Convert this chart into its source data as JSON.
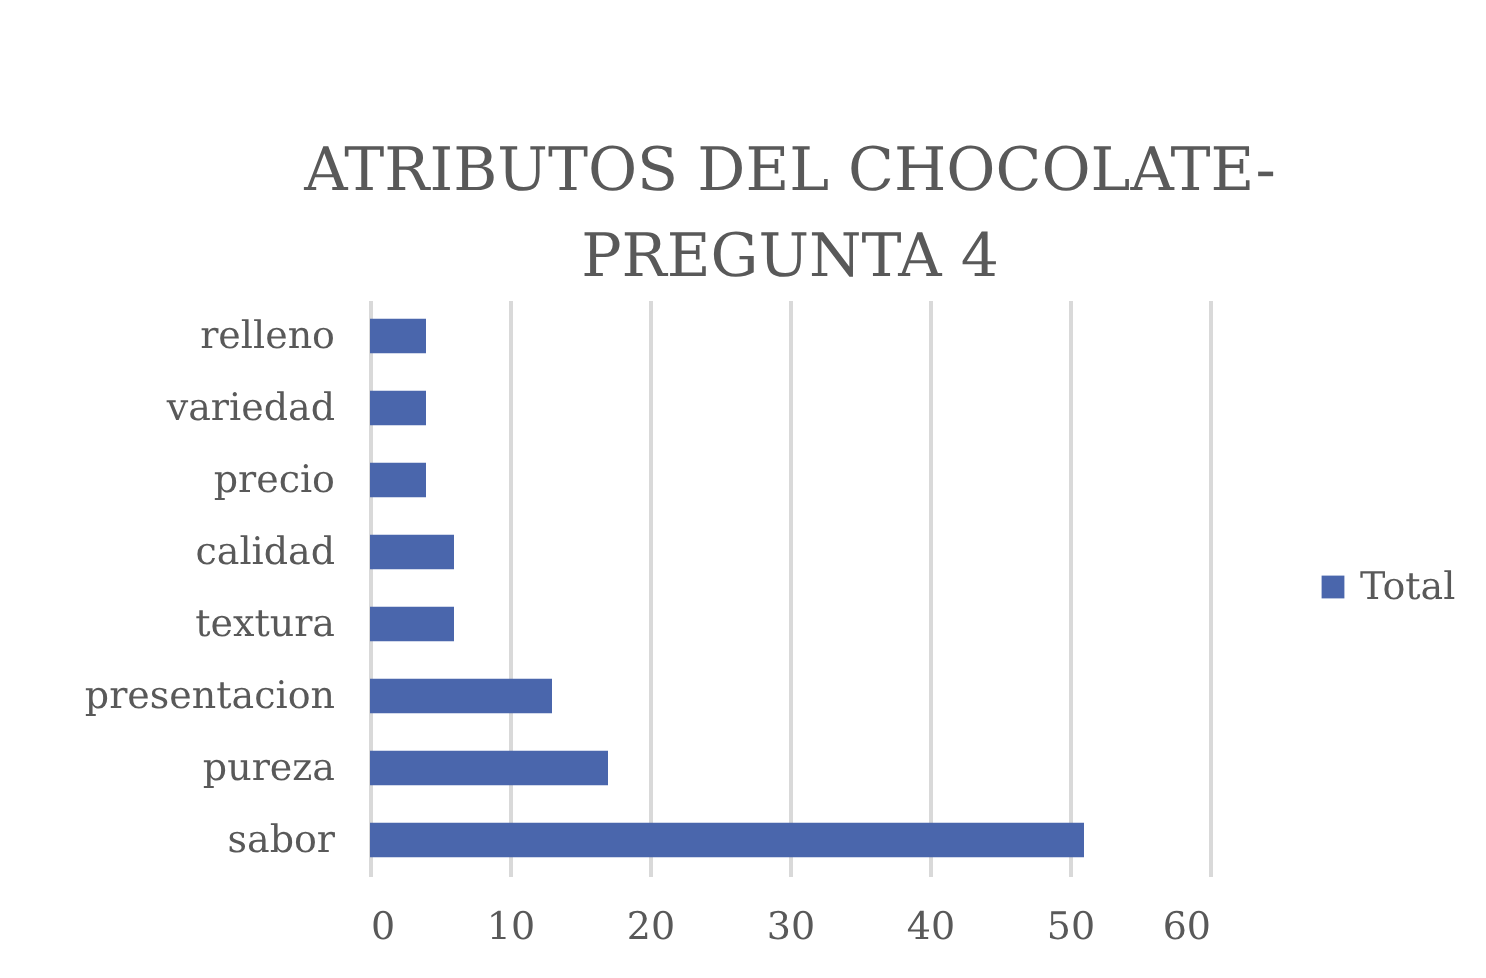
{
  "chart_data": {
    "type": "bar",
    "title": "ATRIBUTOS DEL CHOCOLATE-PREGUNTA 4",
    "orientation": "horizontal",
    "categories": [
      "relleno",
      "variedad",
      "precio",
      "calidad",
      "textura",
      "presentacion",
      "pureza",
      "sabor"
    ],
    "series": [
      {
        "name": "Total",
        "color": "#4a66ac",
        "values": [
          4,
          4,
          4,
          6,
          6,
          13,
          17,
          51
        ]
      }
    ],
    "xlim": [
      0,
      60
    ],
    "xticks": [
      0,
      10,
      20,
      30,
      40,
      50,
      60
    ],
    "grid": "x",
    "legend": "right"
  }
}
